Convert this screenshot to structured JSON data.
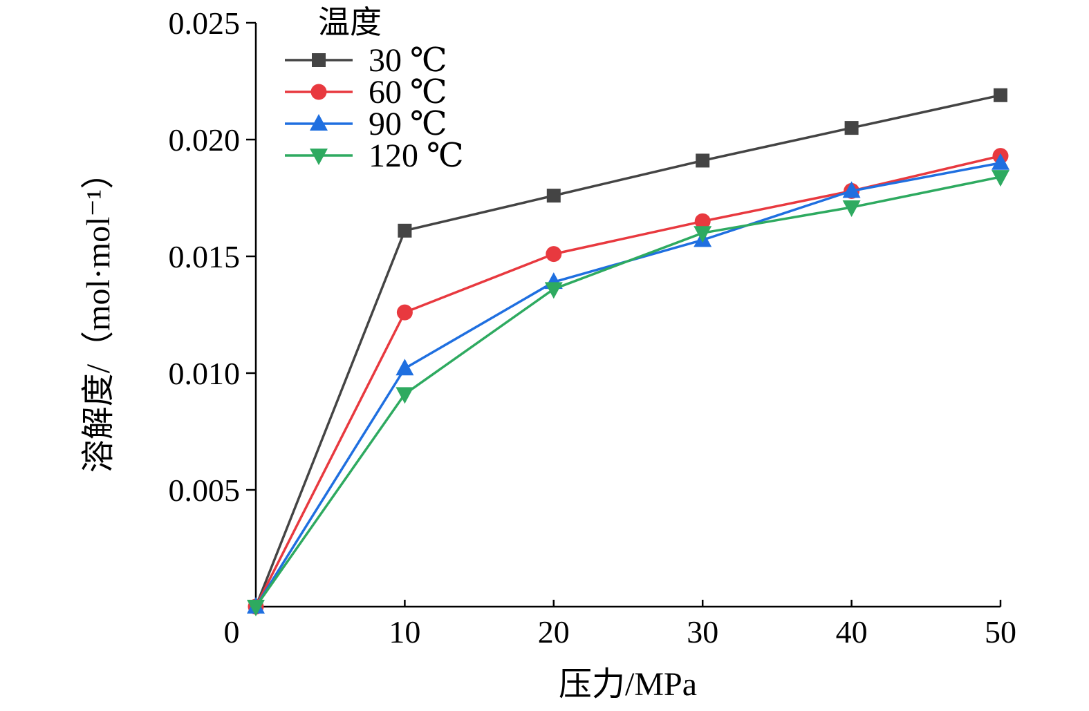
{
  "chart_data": {
    "type": "line",
    "xlabel": "压力/MPa",
    "ylabel": "溶解度/（mol·mol⁻¹）",
    "x": [
      0,
      10,
      20,
      30,
      40,
      50
    ],
    "xticks": [
      "0",
      "10",
      "20",
      "30",
      "40",
      "50"
    ],
    "xlim": [
      0,
      50
    ],
    "yticks": [
      "0.005",
      "0.010",
      "0.015",
      "0.020",
      "0.025"
    ],
    "ylim": [
      0,
      0.025
    ],
    "grid": false,
    "legend": {
      "title": "温度",
      "placement": "top-left"
    },
    "series": [
      {
        "name": "30 ℃",
        "color": "#444444",
        "marker": "square",
        "values": [
          0,
          0.0161,
          0.0176,
          0.0191,
          0.0205,
          0.0219
        ]
      },
      {
        "name": "60 ℃",
        "color": "#e8393f",
        "marker": "circle",
        "values": [
          0,
          0.0126,
          0.0151,
          0.0165,
          0.0178,
          0.0193
        ]
      },
      {
        "name": "90 ℃",
        "color": "#1f6fe0",
        "marker": "triangle-up",
        "values": [
          0,
          0.0102,
          0.0139,
          0.0157,
          0.0178,
          0.019
        ]
      },
      {
        "name": "120 ℃",
        "color": "#2eaa60",
        "marker": "triangle-down",
        "values": [
          0,
          0.0091,
          0.0136,
          0.016,
          0.0171,
          0.0184
        ]
      }
    ]
  }
}
